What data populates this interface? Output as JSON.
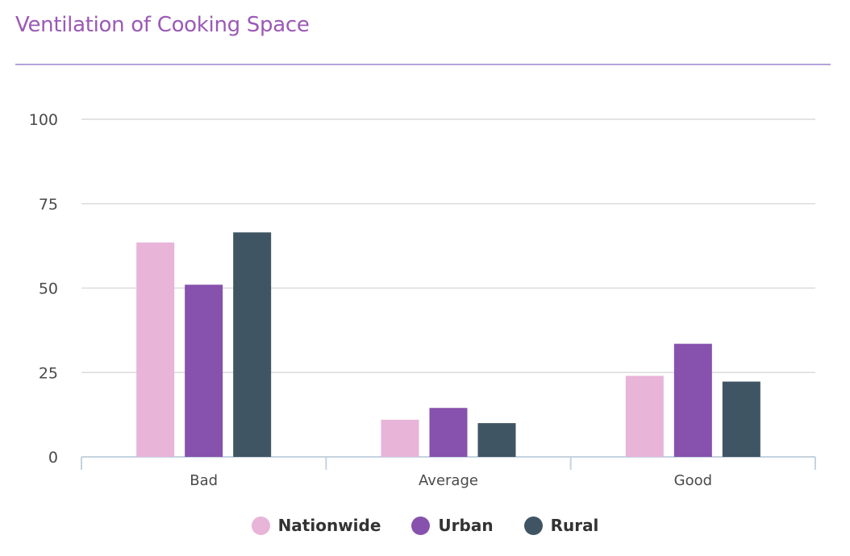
{
  "title": "Ventilation of Cooking Space",
  "chart_data": {
    "type": "bar",
    "categories": [
      "Bad",
      "Average",
      "Good"
    ],
    "series": [
      {
        "name": "Nationwide",
        "values": [
          63.5,
          11,
          24
        ],
        "color": "#e8b4d8"
      },
      {
        "name": "Urban",
        "values": [
          51,
          14.5,
          33.5
        ],
        "color": "#8652ad"
      },
      {
        "name": "Rural",
        "values": [
          66.5,
          10,
          22.3
        ],
        "color": "#3f5563"
      }
    ],
    "ylim": [
      0,
      100
    ],
    "yticks": [
      0,
      25,
      50,
      75,
      100
    ],
    "grid": true,
    "legend_position": "bottom-center",
    "title": "Ventilation of Cooking Space"
  }
}
